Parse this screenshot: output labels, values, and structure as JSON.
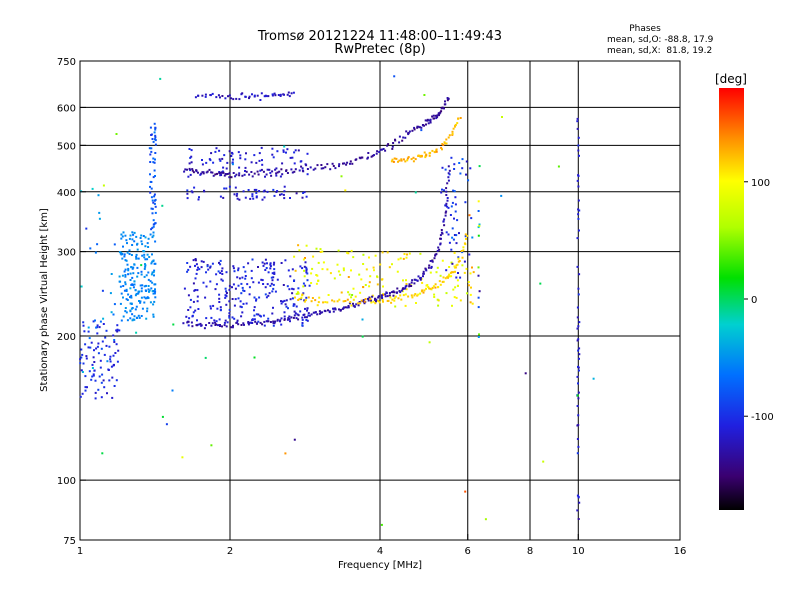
{
  "chart_data": {
    "type": "scatter",
    "title": "Tromsø 20121224 11:48:00–11:49:43",
    "subtitle": "RwPretec (8p)",
    "xlabel": "Frequency [MHz]",
    "ylabel": "Stationary phase Virtual Height [km]",
    "xscale": "log",
    "yscale": "log",
    "xlim": [
      1,
      16
    ],
    "ylim": [
      75,
      750
    ],
    "x_ticks": [
      1,
      2,
      4,
      6,
      8,
      10,
      16
    ],
    "x_tick_labels": [
      "1",
      "2",
      "4",
      "6",
      "8",
      "10",
      "16"
    ],
    "y_ticks": [
      75,
      100,
      200,
      300,
      400,
      500,
      600,
      750
    ],
    "y_tick_labels": [
      "75",
      "100",
      "200",
      "300",
      "400",
      "500",
      "600",
      "750"
    ],
    "x_gridlines": [
      2,
      4,
      6,
      8,
      10
    ],
    "y_gridlines": [
      100,
      200,
      300,
      400,
      500,
      600
    ],
    "stats": {
      "heading": "Phases",
      "line_o": "mean, sd,O: -88.8, 17.9",
      "line_x": "mean, sd,X:  81.8, 19.2"
    },
    "colorbar": {
      "label": "[deg]",
      "range": [
        -180,
        180
      ],
      "ticks": [
        100,
        0,
        -100
      ],
      "tick_labels": [
        "100",
        "0",
        "-100"
      ],
      "colormap": "rainbow"
    },
    "traces": [
      {
        "x": [
          1.62,
          1.75,
          1.9,
          2.0,
          2.2,
          2.45,
          2.7,
          3.0,
          3.3,
          3.6,
          3.9,
          4.2,
          4.5,
          4.8,
          5.0,
          5.2,
          5.35,
          5.5
        ],
        "y": [
          445,
          440,
          437,
          435,
          436,
          440,
          444,
          449,
          455,
          464,
          478,
          500,
          527,
          548,
          560,
          575,
          595,
          628
        ],
        "phase": -135
      },
      {
        "x": [
          1.62,
          1.8,
          2.0,
          2.2,
          2.4,
          2.6,
          2.8,
          3.0,
          3.2,
          3.4,
          3.6,
          3.8,
          4.0,
          4.2,
          4.4,
          4.6,
          4.8,
          5.0,
          5.2,
          5.35,
          5.45,
          5.5
        ],
        "y": [
          212,
          210,
          210,
          212,
          214,
          217,
          220,
          223,
          226,
          229,
          233,
          237,
          241,
          245,
          249,
          255,
          263,
          276,
          296,
          330,
          385,
          460
        ],
        "phase": -130
      },
      {
        "x": [
          2.7,
          3.0,
          3.4,
          3.8,
          4.2,
          4.6,
          5.0,
          5.3,
          5.6,
          5.8,
          6.0
        ],
        "y": [
          240,
          236,
          235,
          236,
          238,
          242,
          250,
          258,
          270,
          290,
          330
        ],
        "phase": 115
      },
      {
        "x": [
          4.2,
          4.5,
          4.8,
          5.0,
          5.3,
          5.6,
          5.8
        ],
        "y": [
          465,
          468,
          473,
          480,
          492,
          530,
          580
        ],
        "phase": 125
      },
      {
        "x": [
          1.7,
          1.9,
          2.1,
          2.3,
          2.5,
          2.7
        ],
        "y": [
          632,
          632,
          633,
          634,
          636,
          640
        ],
        "phase": -120
      }
    ],
    "clusters": [
      {
        "xlim": [
          1.2,
          1.42
        ],
        "ylim": [
          215,
          330
        ],
        "count": 210,
        "phase_mean": -55,
        "phase_sd": 12
      },
      {
        "xlim": [
          1.38,
          1.42
        ],
        "ylim": [
          330,
          560
        ],
        "count": 55,
        "phase_mean": -80,
        "phase_sd": 15
      },
      {
        "xlim": [
          1.0,
          1.2
        ],
        "ylim": [
          148,
          215
        ],
        "count": 85,
        "phase_mean": -105,
        "phase_sd": 15
      },
      {
        "xlim": [
          1.62,
          2.9
        ],
        "ylim": [
          210,
          290
        ],
        "count": 280,
        "phase_mean": -110,
        "phase_sd": 18
      },
      {
        "xlim": [
          1.62,
          2.9
        ],
        "ylim": [
          430,
          495
        ],
        "count": 90,
        "phase_mean": -115,
        "phase_sd": 15
      },
      {
        "xlim": [
          1.62,
          2.9
        ],
        "ylim": [
          385,
          410
        ],
        "count": 55,
        "phase_mean": -115,
        "phase_sd": 15
      },
      {
        "xlim": [
          2.6,
          3.8
        ],
        "ylim": [
          240,
          310
        ],
        "count": 60,
        "phase_mean": 95,
        "phase_sd": 30
      },
      {
        "xlim": [
          3.7,
          6.2
        ],
        "ylim": [
          230,
          300
        ],
        "count": 90,
        "phase_mean": 100,
        "phase_sd": 25
      },
      {
        "xlim": [
          5.3,
          6.1
        ],
        "ylim": [
          260,
          480
        ],
        "count": 55,
        "phase_mean": -100,
        "phase_sd": 25
      },
      {
        "xlim": [
          1.0,
          1.18
        ],
        "ylim": [
          160,
          420
        ],
        "count": 30,
        "phase_mean": -60,
        "phase_sd": 40
      },
      {
        "xlim": [
          9.95,
          10.05
        ],
        "ylim": [
          80,
          640
        ],
        "count": 55,
        "phase_mean": -115,
        "phase_sd": 15
      },
      {
        "xlim": [
          6.3,
          6.35
        ],
        "ylim": [
          160,
          480
        ],
        "count": 14,
        "phase_mean": -20,
        "phase_sd": 90
      },
      {
        "xlim": [
          1.0,
          11.0
        ],
        "ylim": [
          80,
          700
        ],
        "count": 45,
        "phase_mean": 0,
        "phase_sd": 100
      }
    ]
  }
}
